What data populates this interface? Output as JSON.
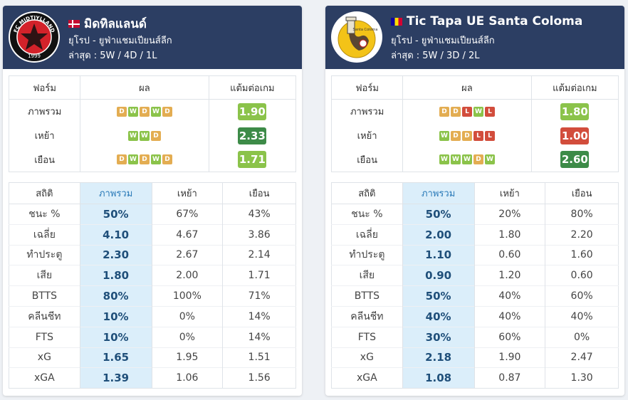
{
  "labels": {
    "form_col": "ฟอร์ม",
    "result_col": "ผล",
    "ppg_col": "แต้มต่อเกม",
    "stat_col": "สถิติ",
    "overall_col": "ภาพรวม",
    "home_col": "เหย้า",
    "away_col": "เยือน"
  },
  "colors": {
    "header_bg": "#2c3e63",
    "win": "#8bc34a",
    "draw": "#e3ad52",
    "loss": "#d24d3c",
    "overall_bg": "#dbeefa"
  },
  "teams": [
    {
      "name": "มิดทิลแลนด์",
      "flag": "denmark-flag",
      "league": "ยุโรป - ยูฟ่าแชมเปียนส์ลีก",
      "recent": "ล่าสุด : 5W / 4D / 1L",
      "logo_text": "FC MIDTJYLLAND",
      "logo_year": "1999",
      "form": [
        {
          "label": "ภาพรวม",
          "results": [
            "D",
            "W",
            "D",
            "W",
            "D"
          ],
          "ppg": "1.90",
          "ppg_color": "#8bc34a"
        },
        {
          "label": "เหย้า",
          "results": [
            "W",
            "W",
            "D"
          ],
          "ppg": "2.33",
          "ppg_color": "#3d8b48"
        },
        {
          "label": "เยือน",
          "results": [
            "D",
            "W",
            "D",
            "W",
            "D"
          ],
          "ppg": "1.71",
          "ppg_color": "#8bc34a"
        }
      ],
      "stats": [
        {
          "label": "ชนะ %",
          "overall": "50%",
          "home": "67%",
          "away": "43%"
        },
        {
          "label": "เฉลี่ย",
          "overall": "4.10",
          "home": "4.67",
          "away": "3.86"
        },
        {
          "label": "ทำประตู",
          "overall": "2.30",
          "home": "2.67",
          "away": "2.14"
        },
        {
          "label": "เสีย",
          "overall": "1.80",
          "home": "2.00",
          "away": "1.71"
        },
        {
          "label": "BTTS",
          "overall": "80%",
          "home": "100%",
          "away": "71%"
        },
        {
          "label": "คลีนชีท",
          "overall": "10%",
          "home": "0%",
          "away": "14%"
        },
        {
          "label": "FTS",
          "overall": "10%",
          "home": "0%",
          "away": "14%"
        },
        {
          "label": "xG",
          "overall": "1.65",
          "home": "1.95",
          "away": "1.51"
        },
        {
          "label": "xGA",
          "overall": "1.39",
          "home": "1.06",
          "away": "1.56"
        }
      ]
    },
    {
      "name": "Tic Tapa UE Santa Coloma",
      "flag": "andorra-flag",
      "league": "ยุโรป - ยูฟ่าแชมเปียนส์ลีก",
      "recent": "ล่าสุด : 5W / 3D / 2L",
      "logo_text": "Santa Coloma",
      "logo_year": "",
      "form": [
        {
          "label": "ภาพรวม",
          "results": [
            "D",
            "D",
            "L",
            "W",
            "L"
          ],
          "ppg": "1.80",
          "ppg_color": "#8bc34a"
        },
        {
          "label": "เหย้า",
          "results": [
            "W",
            "D",
            "D",
            "L",
            "L"
          ],
          "ppg": "1.00",
          "ppg_color": "#d24d3c"
        },
        {
          "label": "เยือน",
          "results": [
            "W",
            "W",
            "W",
            "D",
            "W"
          ],
          "ppg": "2.60",
          "ppg_color": "#3d8b48"
        }
      ],
      "stats": [
        {
          "label": "ชนะ %",
          "overall": "50%",
          "home": "20%",
          "away": "80%"
        },
        {
          "label": "เฉลี่ย",
          "overall": "2.00",
          "home": "1.80",
          "away": "2.20"
        },
        {
          "label": "ทำประตู",
          "overall": "1.10",
          "home": "0.60",
          "away": "1.60"
        },
        {
          "label": "เสีย",
          "overall": "0.90",
          "home": "1.20",
          "away": "0.60"
        },
        {
          "label": "BTTS",
          "overall": "50%",
          "home": "40%",
          "away": "60%"
        },
        {
          "label": "คลีนชีท",
          "overall": "40%",
          "home": "40%",
          "away": "40%"
        },
        {
          "label": "FTS",
          "overall": "30%",
          "home": "60%",
          "away": "0%"
        },
        {
          "label": "xG",
          "overall": "2.18",
          "home": "1.90",
          "away": "2.47"
        },
        {
          "label": "xGA",
          "overall": "1.08",
          "home": "0.87",
          "away": "1.30"
        }
      ]
    }
  ]
}
